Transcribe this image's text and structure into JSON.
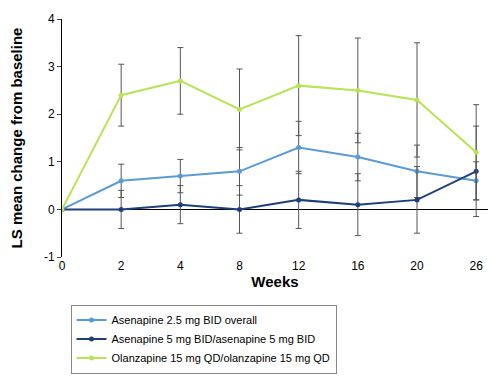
{
  "chart_data": {
    "type": "line",
    "x_label": "Weeks",
    "y_label": "LS mean change from baseline",
    "categories": [
      "0",
      "2",
      "4",
      "8",
      "12",
      "16",
      "20",
      "26"
    ],
    "ylim": [
      -1,
      4
    ],
    "yticks": [
      -1,
      0,
      1,
      2,
      3,
      4
    ],
    "grid": false,
    "legend": "bottom",
    "marker": "circle",
    "series": [
      {
        "name": "Asenapine 2.5 mg BID overall",
        "color": "#5b9bd5",
        "values": [
          0,
          0.6,
          0.7,
          0.8,
          1.3,
          1.1,
          0.8,
          0.6
        ],
        "errors": [
          0,
          0.35,
          0.35,
          0.5,
          0.55,
          0.5,
          0.55,
          0.4
        ]
      },
      {
        "name": "Asenapine 5 mg BID/asenapine 5 mg BID",
        "color": "#1f3f7a",
        "values": [
          0,
          0,
          0.1,
          0,
          0.2,
          0.1,
          0.2,
          0.8
        ],
        "errors": [
          0,
          0.4,
          0.4,
          0.5,
          0.6,
          0.65,
          0.7,
          0.95
        ]
      },
      {
        "name": "Olanzapine 15 mg QD/olanzapine 15 mg QD",
        "color": "#b8e356",
        "values": [
          0,
          2.4,
          2.7,
          2.1,
          2.6,
          2.5,
          2.3,
          1.2
        ],
        "errors": [
          0,
          0.65,
          0.7,
          0.85,
          1.05,
          1.1,
          1.2,
          1.0
        ]
      }
    ]
  }
}
